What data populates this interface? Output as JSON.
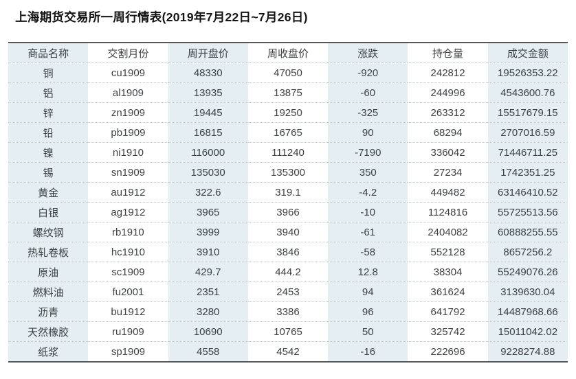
{
  "title": "上海期货交易所一周行情表(2019年7月22日~7月26日)",
  "colors": {
    "stripe": "#e5eef2",
    "rule_dark": "#56585a",
    "row_divider_dotted": "#bcc7cc",
    "cell_text": "#3e4144",
    "title_text": "#141414",
    "background": "#ffffff"
  },
  "table": {
    "columns": [
      "商品名称",
      "交割月份",
      "周开盘价",
      "周收盘价",
      "涨跌",
      "持仓量",
      "成交金额"
    ],
    "column_keys": [
      "commodity",
      "delivery-month",
      "weekly-open",
      "weekly-close",
      "change",
      "open-interest",
      "turnover"
    ],
    "rows": [
      [
        "铜",
        "cu1909",
        "48330",
        "47050",
        "-920",
        "242812",
        "19526353.22"
      ],
      [
        "铝",
        "al1909",
        "13935",
        "13875",
        "-60",
        "244996",
        "4543600.76"
      ],
      [
        "锌",
        "zn1909",
        "19445",
        "19250",
        "-325",
        "263312",
        "15517679.15"
      ],
      [
        "铅",
        "pb1909",
        "16815",
        "16765",
        "90",
        "68294",
        "2707016.59"
      ],
      [
        "镍",
        "ni1910",
        "116000",
        "111240",
        "-7190",
        "336042",
        "71446711.25"
      ],
      [
        "锡",
        "sn1909",
        "135030",
        "135300",
        "350",
        "27234",
        "1742351.25"
      ],
      [
        "黄金",
        "au1912",
        "322.6",
        "319.1",
        "-4.2",
        "449482",
        "63146410.52"
      ],
      [
        "白银",
        "ag1912",
        "3965",
        "3966",
        "-10",
        "1124816",
        "55725513.56"
      ],
      [
        "螺纹钢",
        "rb1910",
        "3999",
        "3940",
        "-61",
        "2404082",
        "60888255.55"
      ],
      [
        "热轧卷板",
        "hc1910",
        "3910",
        "3846",
        "-58",
        "552128",
        "8657256.2"
      ],
      [
        "原油",
        "sc1909",
        "429.7",
        "444.2",
        "12.8",
        "38304",
        "55249076.26"
      ],
      [
        "燃料油",
        "fu2001",
        "2351",
        "2453",
        "94",
        "361624",
        "3139630.04"
      ],
      [
        "沥青",
        "bu1912",
        "3280",
        "3386",
        "96",
        "641792",
        "14487968.66"
      ],
      [
        "天然橡胶",
        "ru1909",
        "10690",
        "10765",
        "50",
        "325742",
        "15011042.02"
      ],
      [
        "纸浆",
        "sp1909",
        "4558",
        "4542",
        "-16",
        "222696",
        "9228274.88"
      ]
    ]
  }
}
